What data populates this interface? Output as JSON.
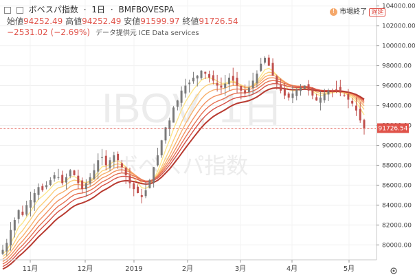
{
  "header": {
    "name": "ボベスパ指数",
    "interval": "1日",
    "symbol": "BMFBOVESPA",
    "open_label": "始値",
    "open_value": "94252.49",
    "high_label": "高値",
    "high_value": "94252.49",
    "low_label": "安値",
    "low_value": "91599.97",
    "close_label": "終値",
    "close_value": "91726.54",
    "change": "−2531.02 (−2.69%)",
    "source": "データ提供元 ICE Data services",
    "market_status": "市場終了",
    "delay": "遅延"
  },
  "watermark": {
    "ticker": "IBOV, 1日",
    "name": "ボベスパ指数"
  },
  "colors": {
    "up": "#7a7a7a",
    "down": "#c0504d",
    "ribbon": [
      "#fde68a",
      "#fbcf7a",
      "#f8b06c",
      "#f2905f",
      "#e67052",
      "#d65045",
      "#b83a30"
    ],
    "last_price_line": "#e0534a"
  },
  "chart_data": {
    "type": "candlestick",
    "title": "ボベスパ指数",
    "x_ticks": [
      "11月",
      "12月",
      "2019",
      "2月",
      "3月",
      "4月",
      "5月"
    ],
    "y_ticks": [
      80000,
      82000,
      84000,
      86000,
      88000,
      90000,
      92000,
      94000,
      96000,
      98000,
      100000,
      102000,
      104000
    ],
    "ylim": [
      78500,
      104600
    ],
    "last_price": 91726.54,
    "last_price_label": "91726.54",
    "close_series": [
      79500,
      80200,
      81500,
      82500,
      83500,
      83000,
      84000,
      84500,
      85200,
      85800,
      85500,
      86000,
      86500,
      87000,
      86800,
      86200,
      86800,
      87500,
      87000,
      86200,
      85600,
      86200,
      86800,
      87500,
      88500,
      88800,
      88000,
      88500,
      89000,
      88500,
      87800,
      87000,
      86200,
      85600,
      85200,
      84800,
      85500,
      86500,
      87800,
      89000,
      90500,
      91800,
      92500,
      93800,
      94500,
      95500,
      96000,
      96300,
      96800,
      97000,
      97500,
      97200,
      96800,
      96500,
      96000,
      95800,
      96200,
      96800,
      96500,
      96000,
      95500,
      95200,
      95800,
      96500,
      97200,
      98200,
      98800,
      98000,
      97000,
      96200,
      95500,
      95000,
      94800,
      95200,
      95600,
      95800,
      96000,
      95500,
      95000,
      94500,
      94800,
      95200,
      95500,
      95400,
      95600,
      95300,
      95000,
      94600,
      94200,
      93500,
      92500,
      91726
    ]
  }
}
